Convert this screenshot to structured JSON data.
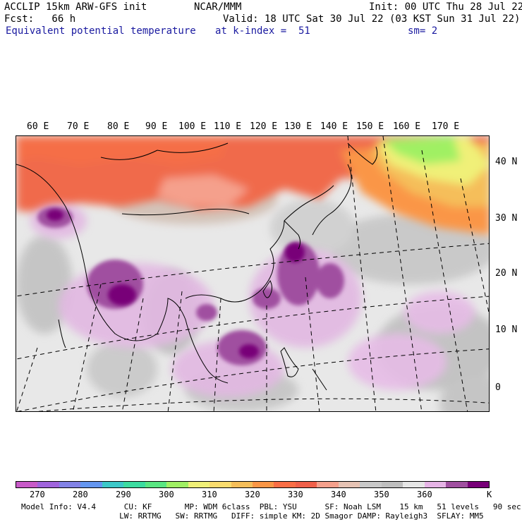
{
  "header": {
    "title_left": "ACCLIP 15km ARW-GFS init",
    "title_center": "NCAR/MMM",
    "init": "Init: 00 UTC Thu 28 Jul 22",
    "fcst": "Fcst:   66 h",
    "valid": "Valid: 18 UTC Sat 30 Jul 22 (03 KST Sun 31 Jul 22)",
    "field": "Equivalent potential temperature",
    "level": "at k-index =  51",
    "smooth": "sm= 2"
  },
  "lon_labels": [
    "60 E",
    "70 E",
    "80 E",
    "90 E",
    "100 E",
    "110 E",
    "120 E",
    "130 E",
    "140 E",
    "150 E",
    "160 E",
    "170 E"
  ],
  "lat_labels": [
    "40 N",
    "30 N",
    "20 N",
    "10 N",
    "0"
  ],
  "colorbar": {
    "colors": [
      "#c85ac8",
      "#a064dc",
      "#8282e6",
      "#6496f0",
      "#3cc8c8",
      "#3cdca0",
      "#5ae682",
      "#a0f064",
      "#f0f078",
      "#fadc6e",
      "#f5be5a",
      "#fa9646",
      "#fa6e46",
      "#f0604a",
      "#f5a08c",
      "#e6c3b4",
      "#c8c8c8",
      "#bebebe",
      "#e6e6e6",
      "#e6b4e6",
      "#a050a0",
      "#780078"
    ],
    "labels": [
      "270",
      "280",
      "290",
      "300",
      "310",
      "320",
      "330",
      "340",
      "350",
      "360"
    ],
    "unit": "K"
  },
  "footer": {
    "line1": "Model Info: V4.4      CU: KF       MP: WDM 6class  PBL: YSU      SF: Noah LSM    15 km   51 levels   90 sec",
    "line2": "                     LW: RRTMG   SW: RRTMG   DIFF: simple KM: 2D Smagor DAMP: Rayleigh3  SFLAY: MM5"
  }
}
